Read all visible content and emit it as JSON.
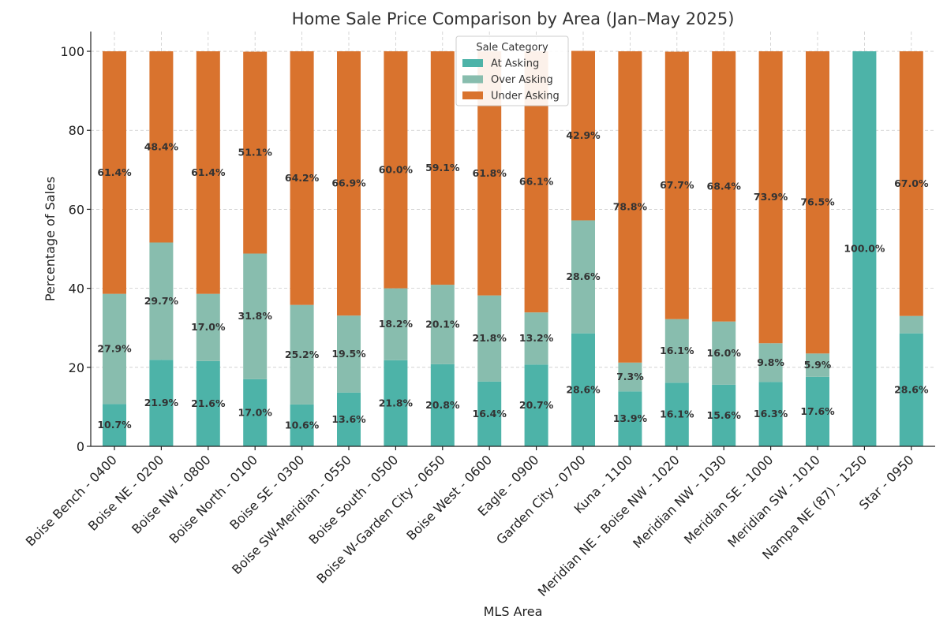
{
  "chart_data": {
    "type": "bar",
    "stacked": true,
    "title": "Home Sale Price Comparison by Area (Jan–May 2025)",
    "xlabel": "MLS Area",
    "ylabel": "Percentage of Sales",
    "ylim": [
      0,
      105
    ],
    "yticks": [
      "0",
      "20",
      "40",
      "60",
      "80",
      "100"
    ],
    "grid": true,
    "legend_title": "Sale Category",
    "legend_position": "top-center",
    "categories": [
      "Boise Bench - 0400",
      "Boise NE - 0200",
      "Boise NW - 0800",
      "Boise North - 0100",
      "Boise SE - 0300",
      "Boise SW-Meridian - 0550",
      "Boise South - 0500",
      "Boise W-Garden City - 0650",
      "Boise West - 0600",
      "Eagle - 0900",
      "Garden City - 0700",
      "Kuna - 1100",
      "Meridian NE - Boise NW - 1020",
      "Meridian NW - 1030",
      "Meridian SE - 1000",
      "Meridian SW - 1010",
      "Nampa NE (87) - 1250",
      "Star - 0950"
    ],
    "series": [
      {
        "name": "At Asking",
        "color": "#4db3a8",
        "values": [
          10.7,
          21.9,
          21.6,
          17.0,
          10.6,
          13.6,
          21.8,
          20.8,
          16.4,
          20.7,
          28.6,
          13.9,
          16.1,
          15.6,
          16.3,
          17.6,
          100.0,
          28.6
        ],
        "labels": [
          "10.7%",
          "21.9%",
          "21.6%",
          "17.0%",
          "10.6%",
          "13.6%",
          "21.8%",
          "20.8%",
          "16.4%",
          "20.7%",
          "28.6%",
          "13.9%",
          "16.1%",
          "15.6%",
          "16.3%",
          "17.6%",
          "100.0%",
          "28.6%"
        ]
      },
      {
        "name": "Over Asking",
        "color": "#88bdae",
        "values": [
          27.9,
          29.7,
          17.0,
          31.8,
          25.2,
          19.5,
          18.2,
          20.1,
          21.8,
          13.2,
          28.6,
          7.3,
          16.1,
          16.0,
          9.8,
          5.9,
          0,
          4.4
        ],
        "labels": [
          "27.9%",
          "29.7%",
          "17.0%",
          "31.8%",
          "25.2%",
          "19.5%",
          "18.2%",
          "20.1%",
          "21.8%",
          "13.2%",
          "28.6%",
          "7.3%",
          "16.1%",
          "16.0%",
          "9.8%",
          "5.9%",
          "",
          ""
        ]
      },
      {
        "name": "Under Asking",
        "color": "#d9732e",
        "values": [
          61.4,
          48.4,
          61.4,
          51.1,
          64.2,
          66.9,
          60.0,
          59.1,
          61.8,
          66.1,
          42.9,
          78.8,
          67.7,
          68.4,
          73.9,
          76.5,
          0,
          67.0
        ],
        "labels": [
          "61.4%",
          "48.4%",
          "61.4%",
          "51.1%",
          "64.2%",
          "66.9%",
          "60.0%",
          "59.1%",
          "61.8%",
          "66.1%",
          "42.9%",
          "78.8%",
          "67.7%",
          "68.4%",
          "73.9%",
          "76.5%",
          "",
          "67.0%"
        ]
      }
    ]
  }
}
